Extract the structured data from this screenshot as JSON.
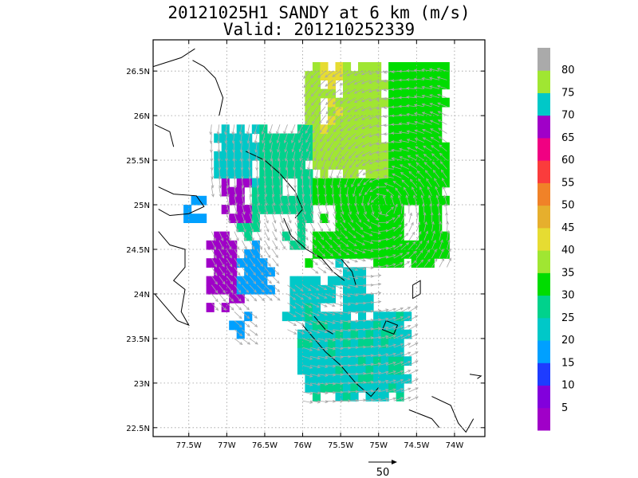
{
  "chart_data": {
    "type": "heatmap",
    "title_line1": "20121025H1 SANDY at 6 km (m/s)",
    "title_line2": "Valid: 201210252339",
    "x_axis": {
      "range": [
        -77.97,
        -73.6
      ],
      "ticks": [
        {
          "value": -77.5,
          "label": "77.5W"
        },
        {
          "value": -77.0,
          "label": "77W"
        },
        {
          "value": -76.5,
          "label": "76.5W"
        },
        {
          "value": -76.0,
          "label": "76W"
        },
        {
          "value": -75.5,
          "label": "75.5W"
        },
        {
          "value": -75.0,
          "label": "75W"
        },
        {
          "value": -74.5,
          "label": "74.5W"
        },
        {
          "value": -74.0,
          "label": "74W"
        }
      ]
    },
    "y_axis": {
      "range": [
        22.4,
        26.85
      ],
      "ticks": [
        {
          "value": 22.5,
          "label": "22.5N"
        },
        {
          "value": 23.0,
          "label": "23N"
        },
        {
          "value": 23.5,
          "label": "23.5N"
        },
        {
          "value": 24.0,
          "label": "24N"
        },
        {
          "value": 24.5,
          "label": "24.5N"
        },
        {
          "value": 25.0,
          "label": "25N"
        },
        {
          "value": 25.5,
          "label": "25.5N"
        },
        {
          "value": 26.0,
          "label": "26N"
        },
        {
          "value": 26.5,
          "label": "26.5N"
        }
      ]
    },
    "grid": true,
    "colorbar": {
      "placement": "right",
      "bins": [
        {
          "max": 5,
          "color": "#a000c8"
        },
        {
          "max": 10,
          "color": "#8200dc"
        },
        {
          "max": 15,
          "color": "#1e3cff"
        },
        {
          "max": 20,
          "color": "#00a0ff"
        },
        {
          "max": 25,
          "color": "#00c8c8"
        },
        {
          "max": 30,
          "color": "#00d28c"
        },
        {
          "max": 35,
          "color": "#00dc00"
        },
        {
          "max": 40,
          "color": "#a0e632"
        },
        {
          "max": 45,
          "color": "#e6dc32"
        },
        {
          "max": 50,
          "color": "#e6af2d"
        },
        {
          "max": 55,
          "color": "#f08228"
        },
        {
          "max": 60,
          "color": "#fa3c3c"
        },
        {
          "max": 65,
          "color": "#f00082"
        },
        {
          "max": 70,
          "color": "#a000c8"
        },
        {
          "max": 75,
          "color": "#00c8c8"
        },
        {
          "max": 80,
          "color": "#a0e632"
        },
        {
          "max": 85,
          "color": "#aaaaaa"
        }
      ],
      "labels": [
        "5",
        "10",
        "15",
        "20",
        "25",
        "30",
        "35",
        "40",
        "45",
        "50",
        "55",
        "60",
        "65",
        "70",
        "75",
        "80"
      ]
    },
    "wind_field": {
      "center": [
        -74.95,
        25.0
      ],
      "reference_vector_label": "50",
      "reference_vector_speed": 50
    },
    "regions": [
      {
        "value": 32,
        "lon": [
          -76.0,
          -74.1
        ],
        "lat": [
          24.3,
          26.6
        ]
      },
      {
        "value": 37,
        "lon": [
          -75.95,
          -74.85
        ],
        "lat": [
          25.3,
          26.6
        ]
      },
      {
        "value": 40,
        "lon": [
          -75.8,
          -75.45
        ],
        "lat": [
          25.85,
          26.6
        ]
      },
      {
        "value": 28,
        "lon": [
          -76.95,
          -75.9
        ],
        "lat": [
          24.55,
          25.95
        ]
      },
      {
        "value": 22,
        "lon": [
          -77.2,
          -76.6
        ],
        "lat": [
          25.2,
          25.95
        ]
      },
      {
        "value": 68,
        "lon": [
          -77.05,
          -76.7
        ],
        "lat": [
          24.85,
          25.3
        ]
      },
      {
        "value": 67,
        "lon": [
          -77.25,
          -76.75
        ],
        "lat": [
          23.85,
          24.75
        ]
      },
      {
        "value": 17,
        "lon": [
          -76.85,
          -76.4
        ],
        "lat": [
          24.0,
          24.6
        ]
      },
      {
        "value": 17,
        "lon": [
          -77.0,
          -76.7
        ],
        "lat": [
          23.5,
          23.85
        ]
      },
      {
        "value": 18,
        "lon": [
          -77.55,
          -77.3
        ],
        "lat": [
          24.85,
          25.15
        ]
      },
      {
        "value": 22,
        "lon": [
          -76.3,
          -75.5
        ],
        "lat": [
          23.6,
          24.2
        ]
      },
      {
        "value": 24,
        "lon": [
          -76.05,
          -74.55
        ],
        "lat": [
          22.8,
          23.9
        ]
      },
      {
        "value": 22,
        "lon": [
          -75.6,
          -75.1
        ],
        "lat": [
          23.7,
          24.4
        ]
      }
    ],
    "blanks": [
      {
        "lon": [
          -76.55,
          -76.05
        ],
        "lat": [
          24.35,
          24.95
        ]
      },
      {
        "lon": [
          -75.9,
          -75.55
        ],
        "lat": [
          24.75,
          25.05
        ]
      },
      {
        "lon": [
          -75.15,
          -74.9
        ],
        "lat": [
          24.05,
          24.3
        ]
      },
      {
        "lon": [
          -74.7,
          -74.45
        ],
        "lat": [
          24.6,
          25.0
        ]
      },
      {
        "lon": [
          -76.4,
          -76.1
        ],
        "lat": [
          25.1,
          25.3
        ]
      }
    ]
  }
}
